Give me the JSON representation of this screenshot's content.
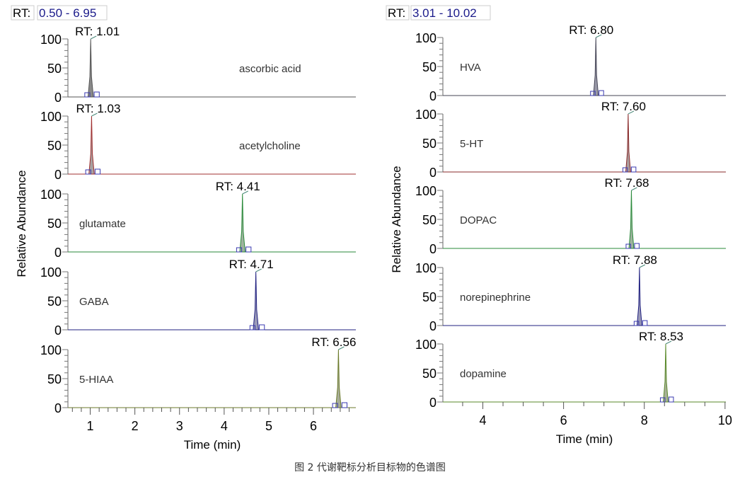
{
  "chart_data": [
    {
      "type": "line",
      "rt_prefix": "RT:",
      "rt_range_label": "0.50 - 6.95",
      "xlim": [
        0.5,
        6.95
      ],
      "ylim": [
        0,
        100
      ],
      "xticks": [
        "1",
        "2",
        "3",
        "4",
        "5",
        "6"
      ],
      "yticks": [
        "0",
        "50",
        "100"
      ],
      "xlabel": "Time (min)",
      "ylabel": "Relative Abundance",
      "series": [
        {
          "name": "ascorbic acid",
          "rt_label": "RT: 1.01",
          "rt": 1.01,
          "peak": 100,
          "color": "#8a8a8a",
          "line": "#555555",
          "label_pos": "right"
        },
        {
          "name": "acetylcholine",
          "rt_label": "RT: 1.03",
          "rt": 1.03,
          "peak": 100,
          "color": "#a8a0a0",
          "line": "#a03030",
          "label_pos": "right"
        },
        {
          "name": "glutamate",
          "rt_label": "RT: 4.41",
          "rt": 4.41,
          "peak": 100,
          "color": "#9fb39f",
          "line": "#2a8a3a",
          "label_pos": "left"
        },
        {
          "name": "GABA",
          "rt_label": "RT: 4.71",
          "rt": 4.71,
          "peak": 100,
          "color": "#9a9ab8",
          "line": "#202080",
          "label_pos": "left"
        },
        {
          "name": "5-HIAA",
          "rt_label": "RT: 6.56",
          "rt": 6.56,
          "peak": 100,
          "color": "#a8ad98",
          "line": "#6b7a2a",
          "label_pos": "left"
        }
      ]
    },
    {
      "type": "line",
      "rt_prefix": "RT:",
      "rt_range_label": "3.01 - 10.02",
      "xlim": [
        3.01,
        10.02
      ],
      "ylim": [
        0,
        100
      ],
      "xticks": [
        "4",
        "6",
        "8",
        "10"
      ],
      "yticks": [
        "0",
        "50",
        "100"
      ],
      "xlabel": "Time (min)",
      "ylabel": "Relative Abundance",
      "series": [
        {
          "name": "HVA",
          "rt_label": "RT: 6.80",
          "rt": 6.8,
          "peak": 100,
          "color": "#9a9aa8",
          "line": "#444455",
          "label_pos": "left"
        },
        {
          "name": "5-HT",
          "rt_label": "RT: 7.60",
          "rt": 7.6,
          "peak": 100,
          "color": "#ab9c9c",
          "line": "#8a2a2a",
          "label_pos": "left"
        },
        {
          "name": "DOPAC",
          "rt_label": "RT: 7.68",
          "rt": 7.68,
          "peak": 100,
          "color": "#9fb39f",
          "line": "#2a8a3a",
          "label_pos": "left"
        },
        {
          "name": "norepinephrine",
          "rt_label": "RT: 7.88",
          "rt": 7.88,
          "peak": 100,
          "color": "#9a9ab8",
          "line": "#202080",
          "label_pos": "left"
        },
        {
          "name": "dopamine",
          "rt_label": "RT: 8.53",
          "rt": 8.53,
          "peak": 100,
          "color": "#a8b098",
          "line": "#5a8a2a",
          "label_pos": "left"
        }
      ]
    }
  ],
  "caption": "图 2 代谢靶标分析目标物的色谱图"
}
